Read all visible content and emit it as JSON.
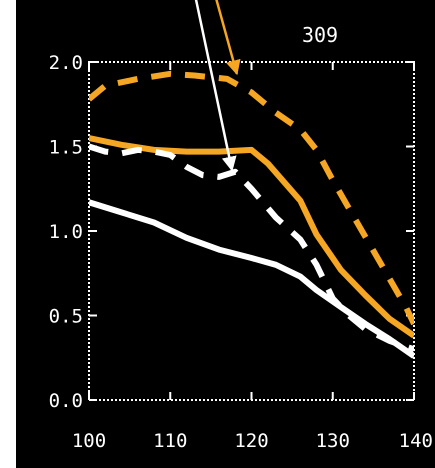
{
  "chart_data": {
    "type": "line",
    "title": "309",
    "xlabel": "",
    "ylabel": "",
    "xlim": [
      100,
      140
    ],
    "ylim": [
      0.0,
      2.0
    ],
    "x_ticks": [
      "100",
      "110",
      "120",
      "130",
      "140"
    ],
    "y_ticks": [
      "0.0",
      "0.5",
      "1.0",
      "1.5",
      "2.0"
    ],
    "grid": false,
    "background": "#000000",
    "series": [
      {
        "style": "dashed",
        "color": "#f5a623",
        "x": [
          100,
          102,
          106,
          110,
          113,
          117,
          120,
          123,
          126,
          128,
          130,
          133,
          136,
          139,
          140
        ],
        "y": [
          1.78,
          1.86,
          1.9,
          1.93,
          1.92,
          1.9,
          1.82,
          1.7,
          1.6,
          1.48,
          1.3,
          1.05,
          0.8,
          0.55,
          0.45
        ]
      },
      {
        "style": "solid",
        "color": "#f5a623",
        "x": [
          100,
          104,
          108,
          112,
          116,
          120,
          122,
          126,
          128,
          131,
          134,
          137,
          140
        ],
        "y": [
          1.55,
          1.51,
          1.48,
          1.47,
          1.47,
          1.48,
          1.4,
          1.18,
          0.98,
          0.77,
          0.62,
          0.48,
          0.38
        ]
      },
      {
        "style": "dashed",
        "color": "#ffffff",
        "x": [
          100,
          102,
          104,
          106,
          108,
          110,
          112,
          114,
          116,
          118,
          120,
          123,
          126,
          128,
          130,
          132,
          134,
          137,
          140
        ],
        "y": [
          1.5,
          1.47,
          1.46,
          1.48,
          1.47,
          1.45,
          1.38,
          1.33,
          1.32,
          1.35,
          1.25,
          1.08,
          0.95,
          0.8,
          0.6,
          0.5,
          0.42,
          0.35,
          0.3
        ]
      },
      {
        "style": "solid",
        "color": "#ffffff",
        "x": [
          100,
          104,
          108,
          112,
          116,
          120,
          123,
          126,
          128,
          131,
          134,
          137,
          140
        ],
        "y": [
          1.17,
          1.11,
          1.05,
          0.96,
          0.89,
          0.84,
          0.8,
          0.73,
          0.65,
          0.55,
          0.45,
          0.36,
          0.26
        ]
      }
    ],
    "annotations": [
      {
        "type": "arrow",
        "color": "#f5a623",
        "from": [
          113.5,
          2.75
        ],
        "to": [
          118.2,
          1.93
        ]
      },
      {
        "type": "arrow",
        "color": "#ffffff",
        "from": [
          111.5,
          2.75
        ],
        "to": [
          117.6,
          1.36
        ]
      }
    ]
  }
}
